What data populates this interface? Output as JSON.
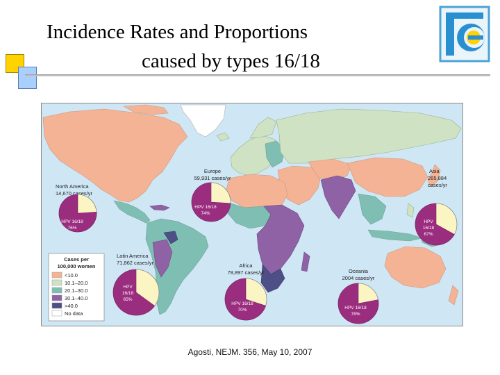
{
  "slide": {
    "title_line1": "Incidence Rates and Proportions",
    "title_line2": "caused by types 16/18",
    "citation": "Agosti, NEJM. 356, May 10, 2007"
  },
  "colors": {
    "ocean": "#cfe6f5",
    "band_lt10": "#f4b394",
    "band_10_20": "#cfe3c4",
    "band_20_30": "#7fbfb3",
    "band_30_40": "#8f62a6",
    "band_gt40": "#4d4f86",
    "no_data": "#ffffff",
    "hpv_slice": "#9b2d7f",
    "other_slice": "#fbf5c4"
  },
  "legend": {
    "title_line1": "Cases per",
    "title_line2": "100,000 women",
    "items": [
      {
        "label": "<10.0",
        "color": "#f4b394"
      },
      {
        "label": "10.1–20.0",
        "color": "#cfe3c4"
      },
      {
        "label": "20.1–30.0",
        "color": "#7fbfb3"
      },
      {
        "label": "30.1–40.0",
        "color": "#8f62a6"
      },
      {
        "label": ">40.0",
        "color": "#4d4f86"
      },
      {
        "label": "No data",
        "color": "#ffffff"
      }
    ]
  },
  "regions": [
    {
      "name": "North America",
      "cases": "14,670 cases/yr",
      "hpv_label": "HPV 16/18",
      "pct_label": "76%",
      "hpv_share": 0.76
    },
    {
      "name": "Europe",
      "cases": "59,931 cases/yr",
      "hpv_label": "HPV 16/18",
      "pct_label": "74%",
      "hpv_share": 0.74
    },
    {
      "name": "Asia",
      "cases_line1": "265,884",
      "cases_line2": "cases/yr",
      "hpv_label1": "HPV",
      "hpv_label2": "16/18",
      "pct_label": "67%",
      "hpv_share": 0.67
    },
    {
      "name": "Latin America",
      "cases": "71,862 cases/yr",
      "hpv_label1": "HPV",
      "hpv_label2": "16/18",
      "pct_label": "65%",
      "hpv_share": 0.65
    },
    {
      "name": "Africa",
      "cases": "78,897 cases/yr",
      "hpv_label": "HPV 16/18",
      "pct_label": "70%",
      "hpv_share": 0.7
    },
    {
      "name": "Oceania",
      "cases": "2004 cases/yr",
      "hpv_label": "HPV 16/18",
      "pct_label": "78%",
      "hpv_share": 0.78
    }
  ]
}
